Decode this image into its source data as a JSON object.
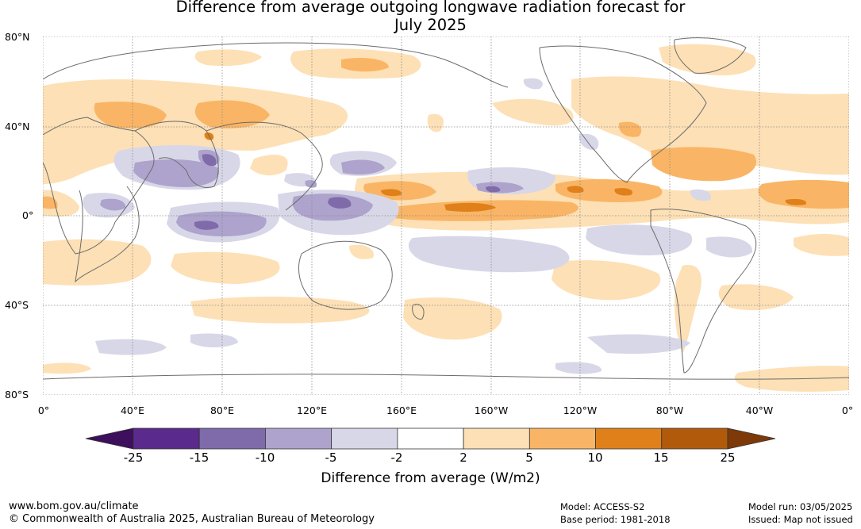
{
  "title_line1": "Difference from average outgoing longwave radiation forecast for",
  "title_line2": "July 2025",
  "lat_labels": [
    "80°N",
    "40°N",
    "0°",
    "40°S",
    "80°S"
  ],
  "lon_labels": [
    "0°",
    "40°E",
    "80°E",
    "120°E",
    "160°E",
    "160°W",
    "120°W",
    "80°W",
    "40°W",
    "0°"
  ],
  "colorbar": {
    "label": "Difference from average (W/m2)",
    "ticks": [
      "-25",
      "-15",
      "-10",
      "-5",
      "-2",
      "2",
      "5",
      "10",
      "15",
      "25"
    ],
    "colors": [
      "#3d0f5c",
      "#5a2a8c",
      "#7f6aaa",
      "#ada3cc",
      "#d8d7e8",
      "#ffffff",
      "#fde0b5",
      "#f9b565",
      "#e0801a",
      "#b25a0c",
      "#7d3a08"
    ]
  },
  "footer": {
    "website": "www.bom.gov.au/climate",
    "copyright": "© Commonwealth of Australia 2025, Australian Bureau of Meteorology",
    "model": "Model: ACCESS-S2",
    "base_period": "Base period: 1981-2018",
    "model_run": "Model run: 03/05/2025",
    "issued": "Issued: Map not issued"
  }
}
